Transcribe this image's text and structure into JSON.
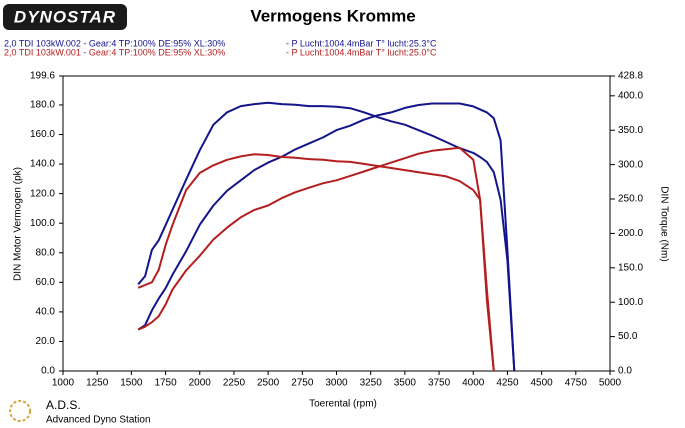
{
  "chart_data": {
    "type": "line",
    "logo": "DYNOSTAR",
    "title": "Vermogens Kromme",
    "x_label": "Toerental (rpm)",
    "y_label": "DIN Motor Vermogen (pk)",
    "y2_label": "DIN Torque (Nm)",
    "footer_title": "A.D.S.",
    "footer_subtitle": "Advanced Dyno Station",
    "grid": false,
    "xlim": [
      1000,
      5000
    ],
    "xticks": [
      1000,
      1250,
      1500,
      1750,
      2000,
      2250,
      2500,
      2750,
      3000,
      3250,
      3500,
      3750,
      4000,
      4250,
      4500,
      4750,
      5000
    ],
    "ylim": [
      0,
      199.6
    ],
    "yticks": [
      {
        "value": 0,
        "label": "0.0"
      },
      {
        "value": 20,
        "label": "20.0"
      },
      {
        "value": 40,
        "label": "40.0"
      },
      {
        "value": 60,
        "label": "60.0"
      },
      {
        "value": 80,
        "label": "80.0"
      },
      {
        "value": 100,
        "label": "100.0"
      },
      {
        "value": 120,
        "label": "120.0"
      },
      {
        "value": 140,
        "label": "140.0"
      },
      {
        "value": 160,
        "label": "160.0"
      },
      {
        "value": 180,
        "label": "180.0"
      },
      199.6
    ],
    "y2lim": [
      0,
      428.8
    ],
    "y2ticks": [
      {
        "value": 0,
        "label": "0.0"
      },
      {
        "value": 50,
        "label": "50.0"
      },
      {
        "value": 100,
        "label": "100.0"
      },
      {
        "value": 150,
        "label": "150.0"
      },
      {
        "value": 200,
        "label": "200.0"
      },
      {
        "value": 250,
        "label": "250.0"
      },
      {
        "value": 300,
        "label": "300.0"
      },
      {
        "value": 350,
        "label": "350.0"
      },
      {
        "value": 400,
        "label": "400.0"
      },
      428.8
    ],
    "x": [
      1550,
      1600,
      1650,
      1700,
      1750,
      1800,
      1900,
      2000,
      2100,
      2200,
      2300,
      2400,
      2500,
      2600,
      2700,
      2800,
      2900,
      3000,
      3100,
      3200,
      3300,
      3400,
      3500,
      3600,
      3700,
      3800,
      3900,
      4000,
      4050,
      4100,
      4150,
      4200,
      4250,
      4300
    ],
    "series": [
      {
        "name": "2,0 TDI 103kW.002 - Gear:4 TP:100% DE:95% XL:30%",
        "conditions": "- P Lucht:1004.4mBar T° lucht:25.3°C",
        "color": "#14148c",
        "power": [
          28,
          31,
          41,
          49,
          56,
          65,
          81,
          99,
          112,
          122,
          129,
          136,
          141,
          145,
          150,
          154,
          158,
          163,
          166,
          170,
          173,
          175,
          178,
          180,
          181,
          181,
          181,
          179,
          177,
          175,
          171,
          156,
          82,
          0
        ],
        "torque": [
          126,
          138,
          176,
          190,
          212,
          234,
          278,
          321,
          358,
          376,
          385,
          388,
          390,
          388,
          387,
          385,
          385,
          384,
          382,
          376,
          369,
          363,
          358,
          350,
          342,
          333,
          324,
          317,
          311,
          304,
          289,
          249,
          161,
          0
        ]
      },
      {
        "name": "2,0 TDI 103kW.001 - Gear:4 TP:100% DE:95% XL:30%",
        "conditions": "- P Lucht:1004.4mBar T° lucht:25.0°C",
        "color": "#b41e1e",
        "power": [
          28,
          30,
          33,
          37,
          45,
          55,
          68,
          78,
          89,
          97,
          104,
          109,
          112,
          117,
          121,
          124,
          127,
          129,
          132,
          135,
          138,
          141,
          144,
          147,
          149,
          150,
          151,
          143,
          116,
          48,
          0,
          null,
          null,
          null
        ],
        "torque": [
          121,
          125,
          129,
          147,
          183,
          212,
          263,
          288,
          299,
          307,
          312,
          315,
          314,
          311,
          310,
          308,
          307,
          305,
          304,
          301,
          298,
          295,
          292,
          289,
          286,
          283,
          276,
          263,
          249,
          118,
          0,
          null,
          null,
          null
        ]
      }
    ]
  }
}
